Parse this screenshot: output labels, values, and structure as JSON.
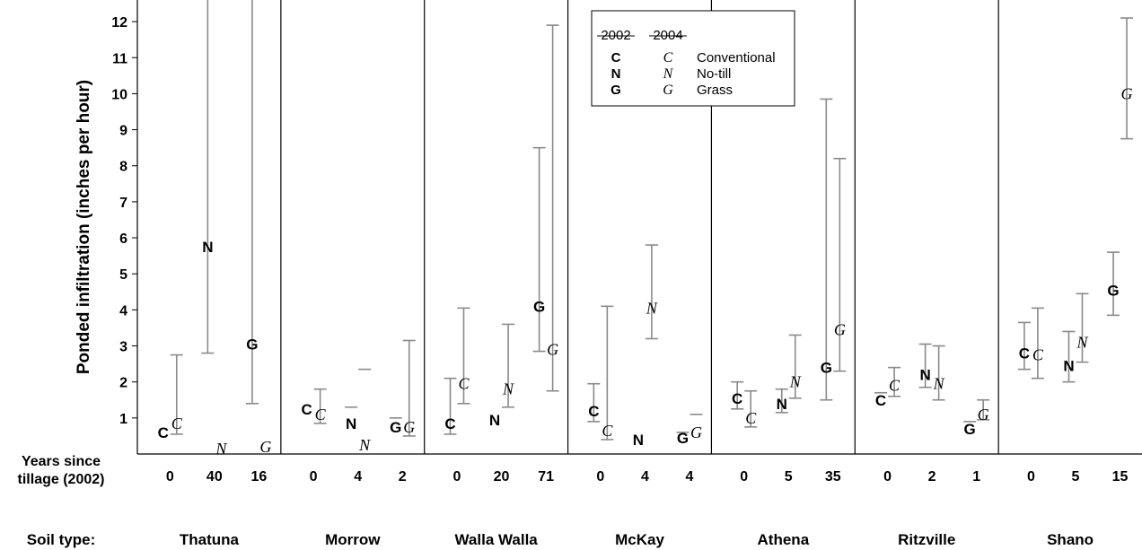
{
  "chart_data": {
    "type": "scatter",
    "ylabel": "Ponded infiltration (inches per hour)",
    "ylim": [
      0,
      12.6
    ],
    "yticks": [
      1,
      2,
      3,
      4,
      5,
      6,
      7,
      8,
      9,
      10,
      11,
      12
    ],
    "row_labels": {
      "years": "Years since tillage (2002)",
      "years_lines": [
        "Years since",
        "tillage (2002)"
      ],
      "soil": "Soil type:"
    },
    "legend": {
      "placement": "top-center",
      "headers": [
        "2002",
        "2004"
      ],
      "rows": [
        {
          "m2002": "C",
          "m2004": "C",
          "label": "Conventional"
        },
        {
          "m2002": "N",
          "m2004": "N",
          "label": "No-till"
        },
        {
          "m2002": "G",
          "m2004": "G",
          "label": "Grass"
        }
      ]
    },
    "soils": [
      {
        "name": "Thatuna",
        "years": [
          "0",
          "40",
          "16"
        ],
        "groups": [
          {
            "marker": "C",
            "y2002": 0.6,
            "lo2002": null,
            "hi2002": null,
            "y2004": 0.85,
            "lo2004": 0.55,
            "hi2004": 2.75
          },
          {
            "marker": "N",
            "y2002": 5.75,
            "lo2002": 2.8,
            "hi2002": 12.6,
            "y2004": 0.15,
            "lo2004": null,
            "hi2004": null
          },
          {
            "marker": "G",
            "y2002": 3.05,
            "lo2002": 1.4,
            "hi2002": 12.6,
            "y2004": 0.2,
            "lo2004": null,
            "hi2004": null
          }
        ]
      },
      {
        "name": "Morrow",
        "years": [
          "0",
          "4",
          "2"
        ],
        "groups": [
          {
            "marker": "C",
            "y2002": 1.25,
            "lo2002": null,
            "hi2002": null,
            "y2004": 1.1,
            "lo2004": 0.85,
            "hi2004": 1.8
          },
          {
            "marker": "N",
            "y2002": 0.85,
            "lo2002": null,
            "hi2002": 1.3,
            "y2004": 0.25,
            "lo2004": null,
            "hi2004": 2.35
          },
          {
            "marker": "G",
            "y2002": 0.75,
            "lo2002": null,
            "hi2002": 1.0,
            "y2004": 0.75,
            "lo2004": 0.5,
            "hi2004": 3.15
          }
        ]
      },
      {
        "name": "Walla Walla",
        "years": [
          "0",
          "20",
          "71"
        ],
        "groups": [
          {
            "marker": "C",
            "y2002": 0.85,
            "lo2002": 0.55,
            "hi2002": 2.1,
            "y2004": 1.95,
            "lo2004": 1.4,
            "hi2004": 4.05
          },
          {
            "marker": "N",
            "y2002": 0.95,
            "lo2002": null,
            "hi2002": null,
            "y2004": 1.8,
            "lo2004": 1.3,
            "hi2004": 3.6
          },
          {
            "marker": "G",
            "y2002": 4.1,
            "lo2002": 2.85,
            "hi2002": 8.5,
            "y2004": 2.9,
            "lo2004": 1.75,
            "hi2004": 11.9
          }
        ]
      },
      {
        "name": "McKay",
        "years": [
          "0",
          "4",
          "4"
        ],
        "groups": [
          {
            "marker": "C",
            "y2002": 1.2,
            "lo2002": 0.9,
            "hi2002": 1.95,
            "y2004": 0.65,
            "lo2004": 0.4,
            "hi2004": 4.1
          },
          {
            "marker": "N",
            "y2002": 0.4,
            "lo2002": null,
            "hi2002": null,
            "y2004": 4.05,
            "lo2004": 3.2,
            "hi2004": 5.8
          },
          {
            "marker": "G",
            "y2002": 0.45,
            "lo2002": null,
            "hi2002": 0.6,
            "y2004": 0.6,
            "lo2004": null,
            "hi2004": 1.1
          }
        ]
      },
      {
        "name": "Athena",
        "years": [
          "0",
          "5",
          "35"
        ],
        "groups": [
          {
            "marker": "C",
            "y2002": 1.55,
            "lo2002": 1.25,
            "hi2002": 2.0,
            "y2004": 1.0,
            "lo2004": 0.75,
            "hi2004": 1.75
          },
          {
            "marker": "N",
            "y2002": 1.4,
            "lo2002": 1.15,
            "hi2002": 1.8,
            "y2004": 2.0,
            "lo2004": 1.55,
            "hi2004": 3.3
          },
          {
            "marker": "G",
            "y2002": 2.4,
            "lo2002": 1.5,
            "hi2002": 9.85,
            "y2004": 3.45,
            "lo2004": 2.3,
            "hi2004": 8.2
          }
        ]
      },
      {
        "name": "Ritzville",
        "years": [
          "0",
          "2",
          "1"
        ],
        "groups": [
          {
            "marker": "C",
            "y2002": 1.5,
            "lo2002": null,
            "hi2002": 1.7,
            "y2004": 1.9,
            "lo2004": 1.6,
            "hi2004": 2.4
          },
          {
            "marker": "N",
            "y2002": 2.2,
            "lo2002": 1.85,
            "hi2002": 3.05,
            "y2004": 1.95,
            "lo2004": 1.5,
            "hi2004": 3.0
          },
          {
            "marker": "G",
            "y2002": 0.7,
            "lo2002": null,
            "hi2002": 0.9,
            "y2004": 1.1,
            "lo2004": 0.95,
            "hi2004": 1.5
          }
        ]
      },
      {
        "name": "Shano",
        "years": [
          "0",
          "5",
          "15"
        ],
        "groups": [
          {
            "marker": "C",
            "y2002": 2.8,
            "lo2002": 2.35,
            "hi2002": 3.65,
            "y2004": 2.75,
            "lo2004": 2.1,
            "hi2004": 4.05
          },
          {
            "marker": "N",
            "y2002": 2.45,
            "lo2002": 2.0,
            "hi2002": 3.4,
            "y2004": 3.1,
            "lo2004": 2.55,
            "hi2004": 4.45
          },
          {
            "marker": "G",
            "y2002": 4.55,
            "lo2002": 3.85,
            "hi2002": 5.6,
            "y2004": 10.0,
            "lo2004": 8.75,
            "hi2004": 12.1
          }
        ]
      }
    ]
  }
}
